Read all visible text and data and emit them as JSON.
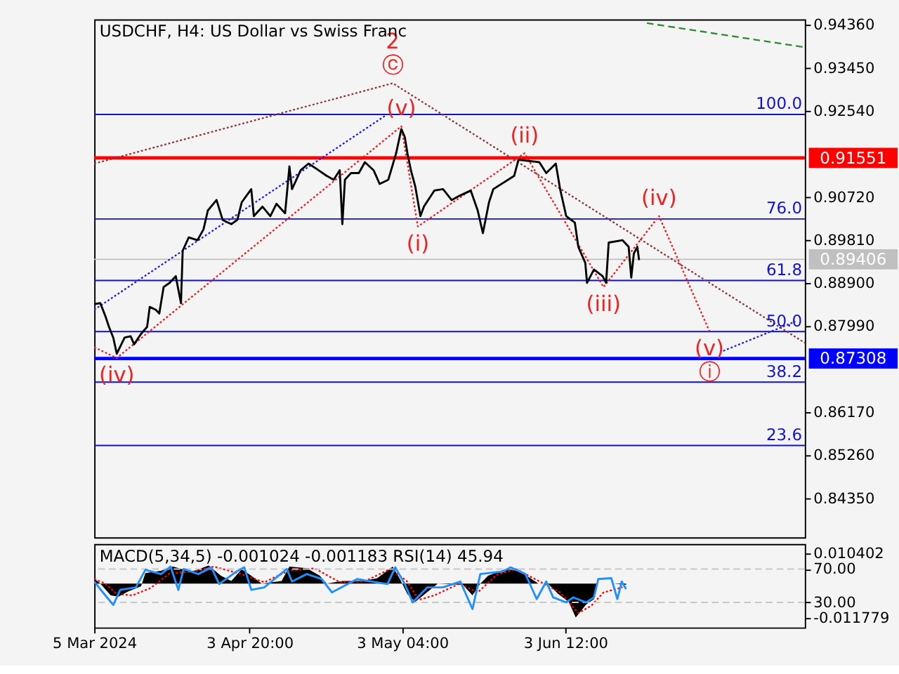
{
  "chart_data": [
    {
      "type": "line",
      "title": "USDCHF, H4:  US Dollar vs Swiss Franc",
      "xlim": [
        "2024-03-05T00:00",
        "2024-07-19T12:00"
      ],
      "ylim": [
        0.8353,
        0.9448
      ],
      "tick_labels": "y",
      "yticks": [
        {
          "value": 0.9436,
          "label": "0.94360"
        },
        {
          "value": 0.9345,
          "label": "0.93450"
        },
        {
          "value": 0.9254,
          "label": "0.92540"
        },
        {
          "value": 0.9072,
          "label": "0.90720"
        },
        {
          "value": 0.8981,
          "label": "0.89810"
        },
        {
          "value": 0.889,
          "label": "0.88900"
        },
        {
          "value": 0.8799,
          "label": "0.87990"
        },
        {
          "value": 0.8617,
          "label": "0.86170"
        },
        {
          "value": 0.8526,
          "label": "0.85260"
        },
        {
          "value": 0.8435,
          "label": "0.84350"
        }
      ],
      "series": [
        {
          "color": "#8b3a3a",
          "line_style": "dotted",
          "x": [
            "2024-03-05T00:00",
            "2024-05-01T08:00",
            "2024-07-19T12:00"
          ],
          "values": [
            0.9143,
            0.9313,
            0.8764
          ]
        },
        {
          "color": "#2e8b2e",
          "line_style": "dashed",
          "x": [
            "2024-06-19T04:00",
            "2024-07-19T12:00"
          ],
          "values": [
            0.944,
            0.9389
          ]
        },
        {
          "color": "#1e1ee6",
          "line_style": "dotted",
          "x": [
            "2024-03-05T00:00",
            "2024-04-30T00:00"
          ],
          "values": [
            0.8834,
            0.9245
          ]
        },
        {
          "color": "#1e1ee6",
          "line_style": "dotted",
          "x": [
            "2024-07-03T20:00",
            "2024-07-17T16:00"
          ],
          "values": [
            0.8747,
            0.8809
          ]
        },
        {
          "color": "#e82020",
          "line_style": "dotted",
          "x": [
            "2024-03-05T00:00",
            "2024-03-09T08:00",
            "2024-05-03T00:00",
            "2024-05-06T04:00",
            "2024-05-26T16:00",
            "2024-06-10T20:00",
            "2024-06-21T12:00",
            "2024-07-01T04:00"
          ],
          "values": [
            0.8755,
            0.8732,
            0.9222,
            0.901,
            0.9165,
            0.8882,
            0.9032,
            0.8789
          ]
        },
        {
          "type": "line",
          "color": "#000000",
          "line_style": "solid",
          "x": [
            "2024-03-05T00:00",
            "2024-03-06T04:00",
            "2024-03-07T04:00",
            "2024-03-07T20:00",
            "2024-03-08T16:00",
            "2024-03-09T08:00",
            "2024-03-10T20:00",
            "2024-03-12T00:00",
            "2024-03-12T16:00",
            "2024-03-14T00:00",
            "2024-03-15T04:00",
            "2024-03-15T16:00",
            "2024-03-16T20:00",
            "2024-03-17T12:00",
            "2024-03-18T08:00",
            "2024-03-19T12:00",
            "2024-03-20T16:00",
            "2024-03-21T16:00",
            "2024-03-22T00:00",
            "2024-03-23T04:00",
            "2024-03-24T20:00",
            "2024-03-26T00:00",
            "2024-03-26T20:00",
            "2024-03-28T12:00",
            "2024-03-29T16:00",
            "2024-03-31T08:00",
            "2024-04-01T12:00",
            "2024-04-02T08:00",
            "2024-04-04T04:00",
            "2024-04-04T16:00",
            "2024-04-06T08:00",
            "2024-04-07T20:00",
            "2024-04-09T00:00",
            "2024-04-10T16:00",
            "2024-04-11T12:00",
            "2024-04-12T00:00",
            "2024-04-13T16:00",
            "2024-04-15T04:00",
            "2024-04-16T20:00",
            "2024-04-18T16:00",
            "2024-04-20T00:00",
            "2024-04-21T04:00",
            "2024-04-21T16:00",
            "2024-04-22T04:00",
            "2024-04-23T08:00",
            "2024-04-24T20:00",
            "2024-04-26T00:00",
            "2024-04-27T16:00",
            "2024-04-28T20:00",
            "2024-04-30T12:00",
            "2024-05-02T00:00",
            "2024-05-03T00:00",
            "2024-05-03T16:00",
            "2024-05-04T04:00",
            "2024-05-04T20:00",
            "2024-05-05T16:00",
            "2024-05-06T16:00",
            "2024-05-07T08:00",
            "2024-05-09T08:00",
            "2024-05-11T00:00",
            "2024-05-12T16:00",
            "2024-05-14T04:00",
            "2024-05-16T08:00",
            "2024-05-17T16:00",
            "2024-05-18T16:00",
            "2024-05-19T20:00",
            "2024-05-20T16:00",
            "2024-05-24T16:00",
            "2024-05-25T12:00",
            "2024-05-29T12:00",
            "2024-05-30T20:00",
            "2024-06-01T16:00",
            "2024-06-02T12:00",
            "2024-06-03T16:00",
            "2024-06-05T08:00",
            "2024-06-06T00:00",
            "2024-06-07T08:00",
            "2024-06-07T16:00",
            "2024-06-09T00:00",
            "2024-06-10T16:00",
            "2024-06-11T08:00",
            "2024-06-11T20:00",
            "2024-06-14T12:00",
            "2024-06-15T16:00",
            "2024-06-16T04:00",
            "2024-06-16T16:00",
            "2024-06-17T08:00",
            "2024-06-17T16:00"
          ],
          "values": [
            0.8846,
            0.8848,
            0.882,
            0.8798,
            0.8775,
            0.8741,
            0.8775,
            0.8778,
            0.8761,
            0.8783,
            0.8798,
            0.884,
            0.8834,
            0.8826,
            0.8882,
            0.8891,
            0.8905,
            0.8848,
            0.8959,
            0.8987,
            0.8981,
            0.9004,
            0.9044,
            0.9066,
            0.9024,
            0.9015,
            0.9024,
            0.9061,
            0.9089,
            0.9032,
            0.9052,
            0.9032,
            0.9058,
            0.9038,
            0.9137,
            0.9089,
            0.9129,
            0.9143,
            0.9131,
            0.9117,
            0.9109,
            0.9129,
            0.9015,
            0.9109,
            0.9123,
            0.9123,
            0.9146,
            0.9129,
            0.91,
            0.9109,
            0.9165,
            0.9216,
            0.9199,
            0.9165,
            0.9129,
            0.9095,
            0.9032,
            0.9052,
            0.9086,
            0.9089,
            0.9066,
            0.9075,
            0.9086,
            0.9044,
            0.8996,
            0.9061,
            0.9089,
            0.9117,
            0.9151,
            0.9146,
            0.9123,
            0.9143,
            0.9089,
            0.9032,
            0.9018,
            0.8967,
            0.8933,
            0.8891,
            0.8919,
            0.8905,
            0.8891,
            0.8976,
            0.8981,
            0.8967,
            0.8902,
            0.8953,
            0.8967,
            0.8939
          ]
        }
      ],
      "ref_lines": [
        {
          "axis": "y",
          "value": 0.9247,
          "color": "#1010d0"
        },
        {
          "axis": "y",
          "value": 0.91551,
          "label": "0.91551",
          "color": "#ff0000"
        },
        {
          "axis": "y",
          "value": 0.9026,
          "color": "#1010d0"
        },
        {
          "axis": "y",
          "value": 0.89406,
          "label": "0.89406",
          "color": "#c0c0c0"
        },
        {
          "axis": "y",
          "value": 0.8896,
          "color": "#1010d0"
        },
        {
          "axis": "y",
          "value": 0.8788,
          "color": "#1010d0"
        },
        {
          "axis": "y",
          "value": 0.87308,
          "label": "0.87308",
          "color": "#0000ff"
        },
        {
          "axis": "y",
          "value": 0.8681,
          "color": "#1010d0"
        },
        {
          "axis": "y",
          "value": 0.8547,
          "color": "#1010d0"
        }
      ],
      "annotations": [
        {
          "text": "2",
          "x": "2024-05-01T08:00",
          "y": 0.9313
        },
        {
          "text": "ⓒ",
          "x": "2024-05-01T08:00",
          "y": 0.9313
        },
        {
          "text": "(v)",
          "x": "2024-05-03T00:00",
          "y": 0.9222
        },
        {
          "text": "(i)",
          "x": "2024-05-06T04:00",
          "y": 0.901
        },
        {
          "text": "(ii)",
          "x": "2024-05-26T16:00",
          "y": 0.9165
        },
        {
          "text": "(iii)",
          "x": "2024-06-10T20:00",
          "y": 0.8882
        },
        {
          "text": "(iv)",
          "x": "2024-06-21T12:00",
          "y": 0.9032
        },
        {
          "text": "(v)",
          "x": "2024-07-01T04:00",
          "y": 0.8789
        },
        {
          "text": "ⓘ",
          "x": "2024-07-01T04:00",
          "y": 0.8789
        },
        {
          "text": "(iv)",
          "x": "2024-03-09T08:00",
          "y": 0.8732
        },
        {
          "text": "100.0",
          "x": "2024-07-19T12:00",
          "y": 0.9247
        },
        {
          "text": "76.0",
          "x": "2024-07-19T12:00",
          "y": 0.9026
        },
        {
          "text": "61.8",
          "x": "2024-07-19T12:00",
          "y": 0.8896
        },
        {
          "text": "50.0",
          "x": "2024-07-19T12:00",
          "y": 0.8788
        },
        {
          "text": "38.2",
          "x": "2024-07-19T12:00",
          "y": 0.8681
        },
        {
          "text": "23.6",
          "x": "2024-07-19T12:00",
          "y": 0.8547
        }
      ]
    },
    {
      "type": "line",
      "title": "MACD(5,34,5) -0.001024 -0.001183 RSI(14) 45.94",
      "xlim": [
        "2024-03-05T00:00",
        "2024-07-19T12:00"
      ],
      "ylim": [
        -0.0149,
        0.0135
      ],
      "yticks": [
        0.010402,
        -0.011779
      ],
      "y2lim": [
        0,
        100
      ],
      "y2ticks": [
        {
          "value": 70,
          "label": "70.00"
        },
        {
          "value": 30,
          "label": "30.00"
        }
      ],
      "xticks": [
        {
          "value": "2024-03-05T00:00",
          "label": "5 Mar 2024"
        },
        {
          "value": "2024-04-03T20:00",
          "label": "3 Apr 20:00"
        },
        {
          "value": "2024-05-03T04:00",
          "label": "3 May 04:00"
        },
        {
          "value": "2024-06-03T12:00",
          "label": "3 Jun 12:00"
        }
      ],
      "series": [
        {
          "type": "area",
          "color": "#000000",
          "x": [
            "2024-03-05T00:00",
            "2024-03-06T04:00",
            "2024-03-08T04:00",
            "2024-03-09T16:00",
            "2024-03-11T12:00",
            "2024-03-14T00:00",
            "2024-03-14T20:00",
            "2024-03-17T20:00",
            "2024-03-20T04:00",
            "2024-03-23T16:00",
            "2024-03-27T00:00",
            "2024-03-29T08:00",
            "2024-03-31T08:00",
            "2024-04-02T08:00",
            "2024-04-04T04:00",
            "2024-04-06T04:00",
            "2024-04-10T00:00",
            "2024-04-11T12:00",
            "2024-04-14T20:00",
            "2024-04-17T08:00",
            "2024-04-18T16:00",
            "2024-04-21T16:00",
            "2024-04-25T12:00",
            "2024-04-28T08:00",
            "2024-05-01T08:00",
            "2024-05-02T16:00",
            "2024-05-04T04:00",
            "2024-05-05T16:00",
            "2024-05-07T12:00",
            "2024-05-10T00:00",
            "2024-05-14T20:00",
            "2024-05-16T16:00",
            "2024-05-18T04:00",
            "2024-05-19T16:00",
            "2024-05-23T12:00",
            "2024-05-26T08:00",
            "2024-05-29T08:00",
            "2024-05-31T04:00",
            "2024-06-02T04:00",
            "2024-06-04T04:00",
            "2024-06-05T12:00",
            "2024-06-07T12:00",
            "2024-06-09T00:00",
            "2024-06-09T12:00",
            "2024-06-12T20:00",
            "2024-06-15T04:00"
          ],
          "values": [
            0.0018,
            0,
            -0.004,
            -0.0044,
            -0.0027,
            -0.0009,
            0.0036,
            0.0044,
            0.0058,
            0.004,
            0.0062,
            0.0027,
            0.0009,
            0.0049,
            0.0027,
            0,
            0.0009,
            0.0058,
            0.0053,
            0.0027,
            0,
            0.0009,
            0.0009,
            0.0018,
            0.0058,
            0.0018,
            -0.0036,
            -0.0062,
            -0.0036,
            0,
            -0.0004,
            -0.004,
            0,
            0.0027,
            0.0053,
            0.0036,
            0,
            0,
            -0.0036,
            -0.0062,
            -0.0115,
            -0.0071,
            -0.0053,
            0,
            0,
            -0.0004
          ]
        },
        {
          "type": "line",
          "color": "#ff0000",
          "line_style": "dotted",
          "x": [
            "2024-03-05T00:00",
            "2024-03-07T00:00",
            "2024-03-09T08:00",
            "2024-03-12T08:00",
            "2024-03-15T20:00",
            "2024-03-19T12:00",
            "2024-03-24T08:00",
            "2024-03-28T00:00",
            "2024-04-01T20:00",
            "2024-04-06T16:00",
            "2024-04-11T12:00",
            "2024-04-16T08:00",
            "2024-04-21T04:00",
            "2024-04-26T00:00",
            "2024-04-30T20:00",
            "2024-05-04T00:00",
            "2024-05-06T08:00",
            "2024-05-09T08:00",
            "2024-05-14T04:00",
            "2024-05-17T16:00",
            "2024-05-21T08:00",
            "2024-05-25T00:00",
            "2024-05-29T20:00",
            "2024-06-02T12:00",
            "2024-06-06T00:00",
            "2024-06-08T12:00",
            "2024-06-10T20:00",
            "2024-06-14T12:00"
          ],
          "values": [
            0.0015,
            0.0002,
            -0.0035,
            -0.004,
            -0.0015,
            0.0035,
            0.0042,
            0.0058,
            0.0035,
            0.0005,
            0.0045,
            0.0052,
            0.0005,
            0.0008,
            0.005,
            0.001,
            -0.0055,
            -0.004,
            0,
            -0.003,
            0.003,
            0.005,
            0.0005,
            -0.003,
            -0.01,
            -0.0075,
            -0.003,
            -0.0012
          ]
        },
        {
          "type": "line",
          "color": "#1e90ff",
          "line_style": "solid",
          "axis": "y2",
          "x": [
            "2024-03-05T00:00",
            "2024-03-06T16:00",
            "2024-03-08T16:00",
            "2024-03-10T00:00",
            "2024-03-13T00:00",
            "2024-03-14T20:00",
            "2024-03-17T20:00",
            "2024-03-19T16:00",
            "2024-03-21T04:00",
            "2024-03-22T04:00",
            "2024-03-25T00:00",
            "2024-03-27T12:00",
            "2024-03-29T00:00",
            "2024-04-01T08:00",
            "2024-04-02T20:00",
            "2024-04-04T04:00",
            "2024-04-06T16:00",
            "2024-04-11T00:00",
            "2024-04-12T00:00",
            "2024-04-14T20:00",
            "2024-04-17T16:00",
            "2024-04-19T16:00",
            "2024-04-24T12:00",
            "2024-04-27T08:00",
            "2024-04-30T08:00",
            "2024-05-01T20:00",
            "2024-05-03T16:00",
            "2024-05-05T04:00",
            "2024-05-08T00:00",
            "2024-05-11T00:00",
            "2024-05-14T08:00",
            "2024-05-16T16:00",
            "2024-05-18T04:00",
            "2024-05-22T12:00",
            "2024-05-24T00:00",
            "2024-05-26T20:00",
            "2024-05-29T00:00",
            "2024-05-30T20:00",
            "2024-06-01T04:00",
            "2024-06-03T16:00",
            "2024-06-05T00:00",
            "2024-06-07T12:00",
            "2024-06-09T00:00",
            "2024-06-09T20:00",
            "2024-06-12T08:00",
            "2024-06-13T12:00",
            "2024-06-14T08:00",
            "2024-06-15T04:00"
          ],
          "values": [
            55,
            42,
            27,
            45,
            48,
            69,
            64,
            73,
            45,
            70,
            64,
            72,
            52,
            67,
            72,
            45,
            48,
            70,
            55,
            64,
            58,
            42,
            58,
            55,
            52,
            72,
            52,
            30,
            48,
            48,
            55,
            22,
            64,
            67,
            72,
            64,
            34,
            55,
            36,
            30,
            36,
            30,
            36,
            58,
            59,
            34,
            55,
            46
          ]
        }
      ],
      "ref_lines": [
        {
          "axis": "y2",
          "value": 70,
          "color": "#c8c8c8",
          "line_style": "dashed"
        },
        {
          "axis": "y2",
          "value": 30,
          "color": "#c8c8c8",
          "line_style": "dashed"
        }
      ]
    }
  ]
}
